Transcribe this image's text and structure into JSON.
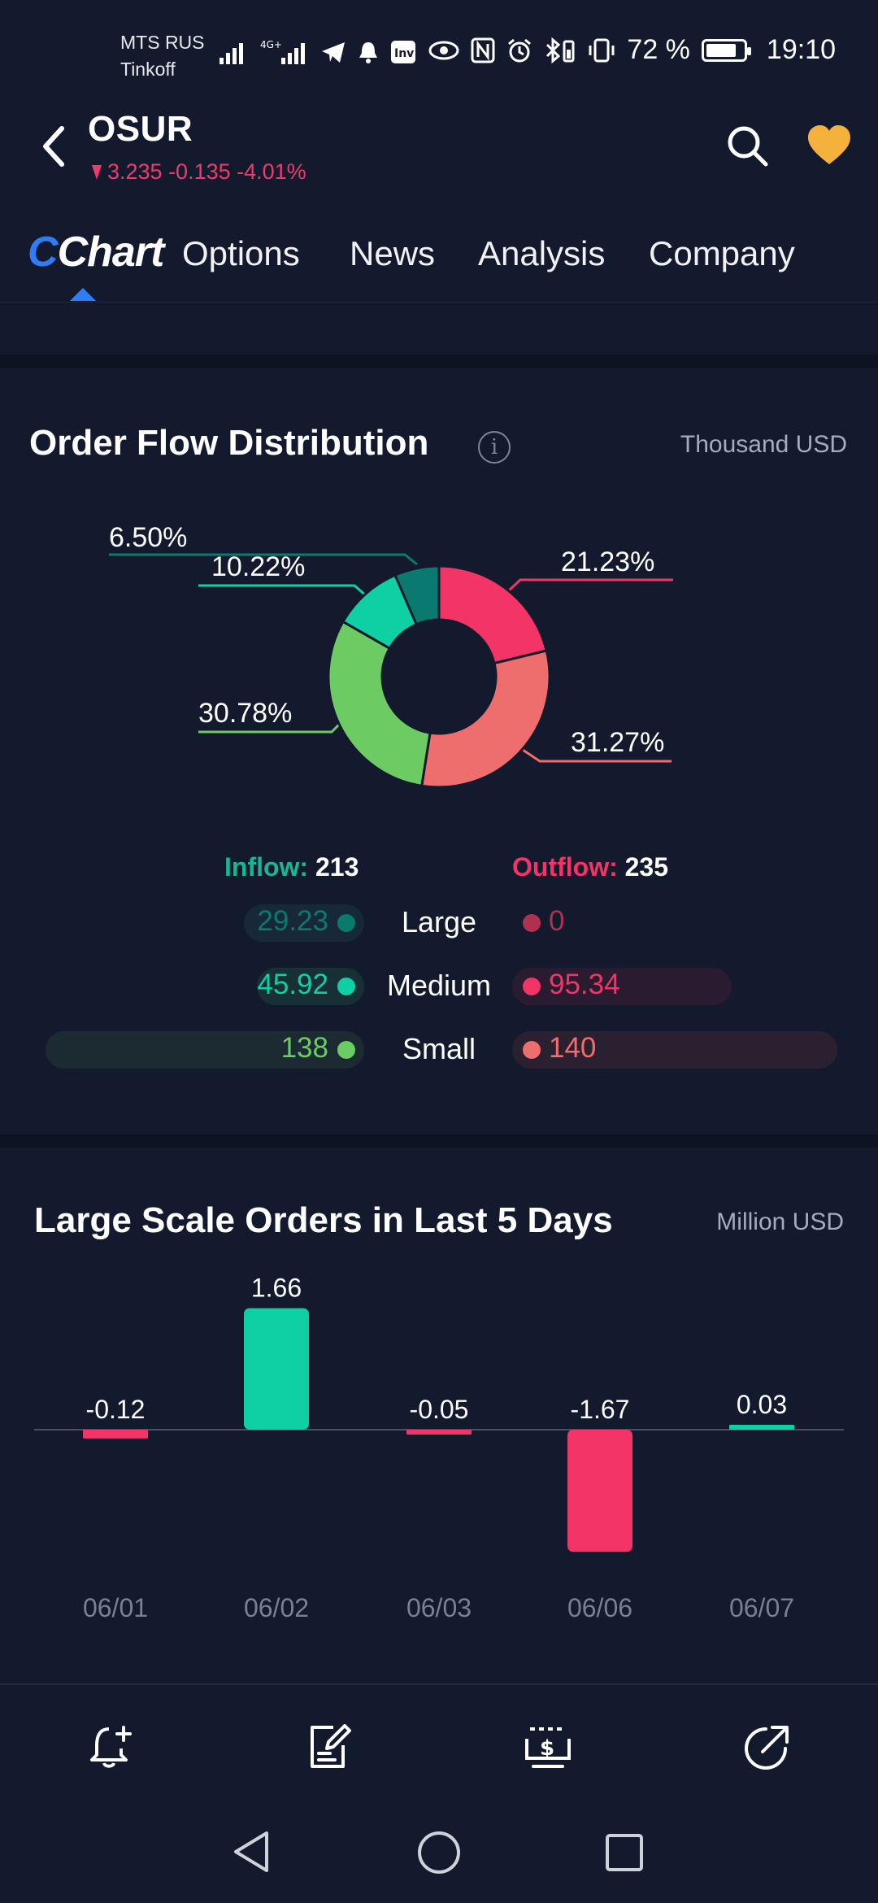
{
  "status_bar": {
    "carrier_line1": "MTS RUS",
    "carrier_line2": "Tinkoff",
    "battery_percent": "72 %",
    "time": "19:10"
  },
  "header": {
    "ticker": "OSUR",
    "quote": "3.235 -0.135 -4.01%",
    "quote_color": "#ef3b6b"
  },
  "tabs": [
    {
      "label": "Chart",
      "active": true
    },
    {
      "label": "Options"
    },
    {
      "label": "News"
    },
    {
      "label": "Analysis"
    },
    {
      "label": "Company"
    }
  ],
  "order_flow": {
    "title": "Order Flow Distribution",
    "unit": "Thousand USD",
    "donut_percents": {
      "large_inflow": "6.50%",
      "medium_inflow": "10.22%",
      "small_inflow": "30.78%",
      "medium_outflow": "21.23%",
      "small_outflow": "31.27%"
    },
    "inflow_label": "Inflow:",
    "inflow_total": "213",
    "outflow_label": "Outflow:",
    "outflow_total": "235",
    "rows": [
      {
        "label": "Large",
        "inflow": "29.23",
        "outflow": "0"
      },
      {
        "label": "Medium",
        "inflow": "45.92",
        "outflow": "95.34"
      },
      {
        "label": "Small",
        "inflow": "138",
        "outflow": "140"
      }
    ],
    "colors": {
      "large_in": "#0b7a6e",
      "medium_in": "#0fcfa5",
      "small_in": "#6ccb62",
      "large_out": "#b0304f",
      "medium_out": "#f23466",
      "small_out": "#ee6e6e"
    }
  },
  "large_orders": {
    "title": "Large Scale Orders in Last 5 Days",
    "unit": "Million USD"
  },
  "chart_data": {
    "type": "bar",
    "categories": [
      "06/01",
      "06/02",
      "06/03",
      "06/06",
      "06/07"
    ],
    "values": [
      -0.12,
      1.66,
      -0.05,
      -1.67,
      0.03
    ],
    "value_labels": [
      "-0.12",
      "1.66",
      "-0.05",
      "-1.67",
      "0.03"
    ],
    "title": "Large Scale Orders in Last 5 Days",
    "ylabel": "Million USD",
    "positive_color": "#0fcfa5",
    "negative_color": "#f23466"
  },
  "toolbar": {
    "icons": [
      "add-alert-icon",
      "edit-note-icon",
      "trade-icon",
      "share-icon"
    ]
  }
}
